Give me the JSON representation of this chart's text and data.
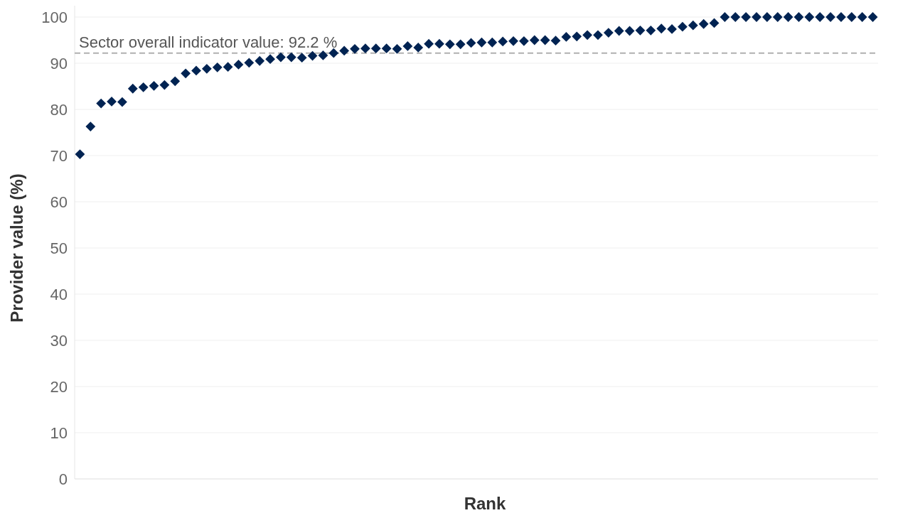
{
  "chart_data": {
    "type": "scatter",
    "xlabel": "Rank",
    "ylabel": "Provider value (%)",
    "categories": [
      null,
      null,
      null,
      null,
      null,
      null,
      null,
      null,
      null,
      null,
      null,
      null,
      null,
      null,
      null,
      null,
      null,
      null,
      null,
      null,
      null,
      null,
      null,
      null,
      null,
      null,
      null,
      null,
      null,
      null,
      null,
      null,
      null,
      null,
      null,
      null,
      null,
      null,
      null,
      null,
      null,
      null,
      null,
      null,
      null,
      null,
      null,
      null,
      null,
      null,
      null,
      null,
      null,
      null,
      null,
      null,
      null,
      null,
      null,
      null,
      null,
      null,
      null,
      null,
      null,
      null,
      null,
      null,
      null,
      null,
      null,
      null,
      null,
      null,
      null,
      null
    ],
    "series": [
      {
        "color": "#002352",
        "values": [
          70.3,
          76.3,
          81.3,
          81.7,
          81.6,
          84.5,
          84.8,
          85.1,
          85.3,
          86.1,
          87.8,
          88.4,
          88.8,
          89.1,
          89.2,
          89.7,
          90.1,
          90.5,
          90.9,
          91.3,
          91.3,
          91.2,
          91.6,
          91.7,
          92.2,
          92.7,
          93.1,
          93.2,
          93.2,
          93.2,
          93.1,
          93.7,
          93.4,
          94.2,
          94.2,
          94.1,
          94.1,
          94.4,
          94.5,
          94.5,
          94.7,
          94.8,
          94.8,
          95.0,
          95.0,
          94.9,
          95.7,
          95.8,
          96.1,
          96.1,
          96.6,
          97.0,
          97.0,
          97.1,
          97.1,
          97.5,
          97.4,
          97.9,
          98.2,
          98.5,
          98.7,
          100,
          100,
          100,
          100,
          100,
          100,
          100,
          100,
          100,
          100,
          100,
          100,
          100,
          100,
          100
        ]
      }
    ],
    "ylim": [
      0,
      100
    ],
    "yticks": [
      0,
      10,
      20,
      30,
      40,
      50,
      60,
      70,
      80,
      90,
      100
    ],
    "grid": "y",
    "tick_labels": "y",
    "marker": "diamond",
    "ref_lines": [
      {
        "axis": "y",
        "value": 92.2,
        "label": "Sector overall indicator value: 92.2 %",
        "color": "#b0b0b0",
        "line_style": "dashed"
      }
    ]
  }
}
